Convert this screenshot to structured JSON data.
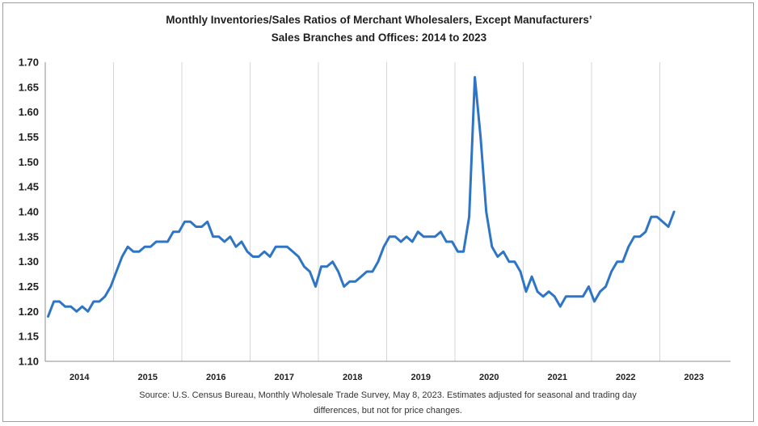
{
  "chart_data": {
    "type": "line",
    "title_line1": "Monthly Inventories/Sales Ratios of Merchant Wholesalers, Except Manufacturers’",
    "title_line2": "Sales Branches and Offices: 2014 to 2023",
    "xlabel": "",
    "ylabel": "",
    "ylim": [
      1.1,
      1.7
    ],
    "yticks": [
      "1.10",
      "1.15",
      "1.20",
      "1.25",
      "1.30",
      "1.35",
      "1.40",
      "1.45",
      "1.50",
      "1.55",
      "1.60",
      "1.65",
      "1.70"
    ],
    "xticks": [
      "2014",
      "2015",
      "2016",
      "2017",
      "2018",
      "2019",
      "2020",
      "2021",
      "2022",
      "2023"
    ],
    "grid": "vertical lines at year boundaries",
    "series": [
      {
        "name": "Inventories/Sales Ratio",
        "color": "#2e75c6",
        "values": [
          1.19,
          1.22,
          1.22,
          1.21,
          1.21,
          1.2,
          1.21,
          1.2,
          1.22,
          1.22,
          1.23,
          1.25,
          1.28,
          1.31,
          1.33,
          1.32,
          1.32,
          1.33,
          1.33,
          1.34,
          1.34,
          1.34,
          1.36,
          1.36,
          1.38,
          1.38,
          1.37,
          1.37,
          1.38,
          1.35,
          1.35,
          1.34,
          1.35,
          1.33,
          1.34,
          1.32,
          1.31,
          1.31,
          1.32,
          1.31,
          1.33,
          1.33,
          1.33,
          1.32,
          1.31,
          1.29,
          1.28,
          1.25,
          1.29,
          1.29,
          1.3,
          1.28,
          1.25,
          1.26,
          1.26,
          1.27,
          1.28,
          1.28,
          1.3,
          1.33,
          1.35,
          1.35,
          1.34,
          1.35,
          1.34,
          1.36,
          1.35,
          1.35,
          1.35,
          1.36,
          1.34,
          1.34,
          1.32,
          1.32,
          1.39,
          1.67,
          1.55,
          1.4,
          1.33,
          1.31,
          1.32,
          1.3,
          1.3,
          1.28,
          1.24,
          1.27,
          1.24,
          1.23,
          1.24,
          1.23,
          1.21,
          1.23,
          1.23,
          1.23,
          1.23,
          1.25,
          1.22,
          1.24,
          1.25,
          1.28,
          1.3,
          1.3,
          1.33,
          1.35,
          1.35,
          1.36,
          1.39,
          1.39,
          1.38,
          1.37,
          1.4
        ]
      }
    ],
    "source_line1": "Source: U.S. Census Bureau, Monthly Wholesale Trade Survey, May 8, 2023. Estimates adjusted for seasonal and trading day",
    "source_line2": "differences, but not for price changes."
  }
}
